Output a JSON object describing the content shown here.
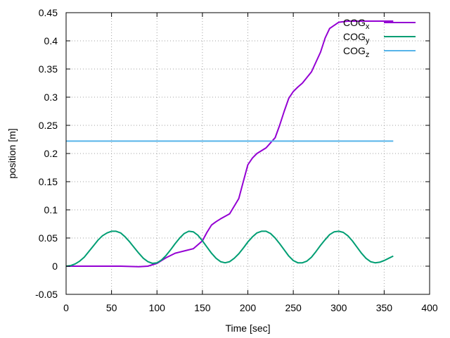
{
  "chart_data": {
    "type": "line",
    "xlabel": "Time [sec]",
    "ylabel": "position [m]",
    "xlim": [
      0,
      400
    ],
    "ylim": [
      -0.05,
      0.45
    ],
    "xticks": [
      0,
      50,
      100,
      150,
      200,
      250,
      300,
      350,
      400
    ],
    "yticks": [
      -0.05,
      0,
      0.05,
      0.1,
      0.15,
      0.2,
      0.25,
      0.3,
      0.35,
      0.4,
      0.45
    ],
    "xtick_labels": [
      "0",
      "50",
      "100",
      "150",
      "200",
      "250",
      "300",
      "350",
      "400"
    ],
    "ytick_labels": [
      "-0.05",
      "0",
      "0.05",
      "0.1",
      "0.15",
      "0.2",
      "0.25",
      "0.3",
      "0.35",
      "0.4",
      "0.45"
    ],
    "grid": true,
    "legend_position": "top-right",
    "series": [
      {
        "name": "COG",
        "subscript": "x",
        "color": "#9400d3",
        "x": [
          0,
          20,
          40,
          60,
          80,
          90,
          100,
          110,
          120,
          130,
          140,
          150,
          155,
          160,
          165,
          170,
          180,
          190,
          195,
          200,
          205,
          210,
          220,
          230,
          235,
          240,
          245,
          250,
          255,
          260,
          270,
          280,
          285,
          290,
          300,
          310,
          320,
          330,
          340,
          350,
          360
        ],
        "values": [
          0.0,
          0.0,
          0.0,
          0.0,
          -0.001,
          0.0,
          0.005,
          0.015,
          0.023,
          0.027,
          0.031,
          0.045,
          0.06,
          0.073,
          0.079,
          0.084,
          0.093,
          0.12,
          0.15,
          0.18,
          0.192,
          0.2,
          0.21,
          0.228,
          0.25,
          0.275,
          0.298,
          0.31,
          0.318,
          0.325,
          0.345,
          0.38,
          0.405,
          0.422,
          0.433,
          0.435,
          0.435,
          0.435,
          0.435,
          0.435,
          0.435
        ]
      },
      {
        "name": "COG",
        "subscript": "y",
        "color": "#009e73",
        "x": [
          0,
          5,
          10,
          15,
          20,
          25,
          30,
          35,
          40,
          45,
          50,
          55,
          60,
          65,
          70,
          75,
          80,
          85,
          90,
          95,
          100,
          105,
          110,
          115,
          120,
          125,
          130,
          135,
          140,
          145,
          150,
          155,
          160,
          165,
          170,
          175,
          180,
          185,
          190,
          195,
          200,
          205,
          210,
          215,
          220,
          225,
          230,
          235,
          240,
          245,
          250,
          255,
          260,
          265,
          270,
          275,
          280,
          285,
          290,
          295,
          300,
          305,
          310,
          315,
          320,
          325,
          330,
          335,
          340,
          345,
          350,
          355,
          360
        ],
        "values": [
          0.0,
          0.001,
          0.004,
          0.009,
          0.016,
          0.026,
          0.036,
          0.046,
          0.054,
          0.059,
          0.062,
          0.062,
          0.059,
          0.052,
          0.043,
          0.033,
          0.023,
          0.014,
          0.008,
          0.005,
          0.006,
          0.011,
          0.019,
          0.029,
          0.04,
          0.05,
          0.058,
          0.062,
          0.061,
          0.055,
          0.045,
          0.034,
          0.023,
          0.014,
          0.008,
          0.006,
          0.008,
          0.014,
          0.022,
          0.032,
          0.043,
          0.052,
          0.059,
          0.062,
          0.062,
          0.058,
          0.05,
          0.04,
          0.029,
          0.018,
          0.01,
          0.006,
          0.006,
          0.009,
          0.016,
          0.026,
          0.037,
          0.047,
          0.056,
          0.061,
          0.062,
          0.06,
          0.054,
          0.045,
          0.034,
          0.023,
          0.014,
          0.008,
          0.006,
          0.007,
          0.01,
          0.014,
          0.018
        ]
      },
      {
        "name": "COG",
        "subscript": "z",
        "color": "#56b4e9",
        "x": [
          0,
          360
        ],
        "values": [
          0.222,
          0.222
        ]
      }
    ]
  }
}
